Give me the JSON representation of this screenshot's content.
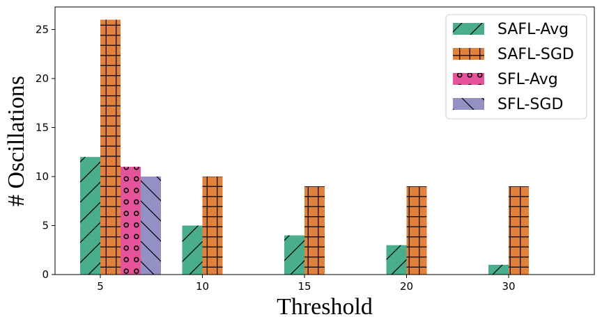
{
  "chart_data": {
    "type": "bar",
    "title": "",
    "xlabel": "Threshold",
    "ylabel": "# Oscillations",
    "categories": [
      "5",
      "10",
      "15",
      "20",
      "30"
    ],
    "ylim": [
      0,
      27.3
    ],
    "yticks": [
      0,
      5,
      10,
      15,
      20,
      25
    ],
    "grid": false,
    "legend_position": "top-right",
    "series": [
      {
        "name": "SAFL-Avg",
        "color": "#4aae8c",
        "hatch": "forward-slash",
        "values": [
          12,
          5,
          4,
          3,
          1
        ]
      },
      {
        "name": "SAFL-SGD",
        "color": "#e0823c",
        "hatch": "grid",
        "values": [
          26,
          10,
          9,
          9,
          9
        ]
      },
      {
        "name": "SFL-Avg",
        "color": "#e5539a",
        "hatch": "circles",
        "values": [
          11,
          0,
          0,
          0,
          0
        ]
      },
      {
        "name": "SFL-SGD",
        "color": "#9590c4",
        "hatch": "back-slash",
        "values": [
          10,
          0,
          0,
          0,
          0
        ]
      }
    ]
  }
}
